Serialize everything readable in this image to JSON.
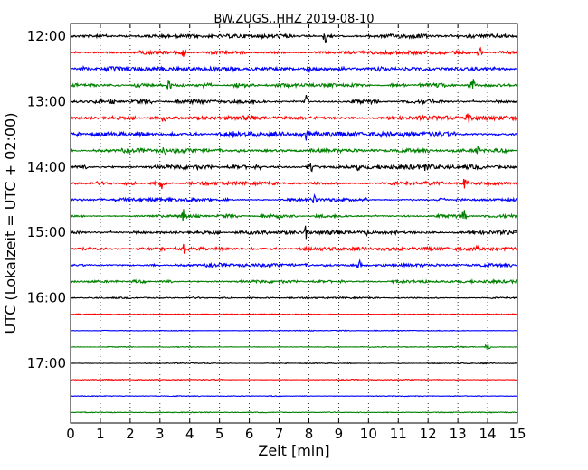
{
  "chart_data": {
    "type": "line",
    "title": "BW.ZUGS..HHZ 2019-08-10",
    "xlabel": "Zeit  [min]",
    "ylabel": "UTC (Lokalzeit = UTC + 02:00)",
    "xlim": [
      0,
      15
    ],
    "xticks": [
      "0",
      "1",
      "2",
      "3",
      "4",
      "5",
      "6",
      "7",
      "8",
      "9",
      "10",
      "11",
      "12",
      "13",
      "14",
      "15"
    ],
    "yticks": [
      "12:00",
      "13:00",
      "14:00",
      "15:00",
      "16:00",
      "17:00"
    ],
    "grid": "vertical dotted",
    "trace_colors": [
      "#000000",
      "#ff0000",
      "#0000ff",
      "#008000"
    ],
    "traces": [
      {
        "start": "12:00",
        "color": "#000000",
        "noise": 0.55,
        "events": [
          {
            "x": 8.55,
            "amp": 1.0
          },
          {
            "x": 8.8,
            "amp": 0.35
          }
        ]
      },
      {
        "start": "12:15",
        "color": "#ff0000",
        "noise": 0.5,
        "events": [
          {
            "x": 3.8,
            "amp": 0.75
          },
          {
            "x": 13.75,
            "amp": 0.95
          }
        ]
      },
      {
        "start": "12:30",
        "color": "#0000ff",
        "noise": 0.6,
        "events": [
          {
            "x": 0.45,
            "amp": 0.3
          },
          {
            "x": 8.0,
            "amp": 0.5
          }
        ]
      },
      {
        "start": "12:45",
        "color": "#008000",
        "noise": 0.55,
        "events": [
          {
            "x": 3.3,
            "amp": 0.85
          },
          {
            "x": 13.5,
            "amp": 0.8
          }
        ]
      },
      {
        "start": "13:00",
        "color": "#000000",
        "noise": 0.55,
        "events": [
          {
            "x": 1.0,
            "amp": 0.4
          },
          {
            "x": 7.9,
            "amp": 0.9
          },
          {
            "x": 12.1,
            "amp": 0.5
          }
        ]
      },
      {
        "start": "13:15",
        "color": "#ff0000",
        "noise": 0.55,
        "events": [
          {
            "x": 3.1,
            "amp": 0.65
          },
          {
            "x": 13.35,
            "amp": 0.9
          }
        ]
      },
      {
        "start": "13:30",
        "color": "#0000ff",
        "noise": 0.65,
        "events": [
          {
            "x": 5.45,
            "amp": 0.35
          },
          {
            "x": 7.95,
            "amp": 0.85
          }
        ]
      },
      {
        "start": "13:45",
        "color": "#008000",
        "noise": 0.55,
        "events": [
          {
            "x": 3.15,
            "amp": 0.8
          },
          {
            "x": 13.65,
            "amp": 0.75
          }
        ]
      },
      {
        "start": "14:00",
        "color": "#000000",
        "noise": 0.6,
        "events": [
          {
            "x": 8.1,
            "amp": 0.9
          },
          {
            "x": 9.65,
            "amp": 0.4
          },
          {
            "x": 11.9,
            "amp": 0.35
          }
        ]
      },
      {
        "start": "14:15",
        "color": "#ff0000",
        "noise": 0.45,
        "events": [
          {
            "x": 3.05,
            "amp": 0.75
          },
          {
            "x": 13.25,
            "amp": 0.85
          }
        ]
      },
      {
        "start": "14:30",
        "color": "#0000ff",
        "noise": 0.45,
        "events": [
          {
            "x": 8.2,
            "amp": 0.8
          },
          {
            "x": 9.85,
            "amp": 0.35
          }
        ]
      },
      {
        "start": "14:45",
        "color": "#008000",
        "noise": 0.45,
        "events": [
          {
            "x": 3.8,
            "amp": 0.9
          },
          {
            "x": 7.0,
            "amp": 0.55
          },
          {
            "x": 13.2,
            "amp": 0.7
          }
        ]
      },
      {
        "start": "15:00",
        "color": "#000000",
        "noise": 0.55,
        "events": [
          {
            "x": 7.9,
            "amp": 1.0
          },
          {
            "x": 9.95,
            "amp": 0.35
          }
        ]
      },
      {
        "start": "15:15",
        "color": "#ff0000",
        "noise": 0.45,
        "events": [
          {
            "x": 3.8,
            "amp": 0.8
          },
          {
            "x": 13.7,
            "amp": 0.85
          }
        ]
      },
      {
        "start": "15:30",
        "color": "#0000ff",
        "noise": 0.45,
        "events": [
          {
            "x": 9.7,
            "amp": 0.6
          }
        ]
      },
      {
        "start": "15:45",
        "color": "#008000",
        "noise": 0.4,
        "events": []
      },
      {
        "start": "16:00",
        "color": "#000000",
        "noise": 0.22,
        "events": []
      },
      {
        "start": "16:15",
        "color": "#ff0000",
        "noise": 0.12,
        "events": []
      },
      {
        "start": "16:30",
        "color": "#0000ff",
        "noise": 0.12,
        "events": []
      },
      {
        "start": "16:45",
        "color": "#008000",
        "noise": 0.12,
        "events": [
          {
            "x": 14.0,
            "amp": 0.55
          }
        ]
      },
      {
        "start": "17:00",
        "color": "#000000",
        "noise": 0.12,
        "events": []
      },
      {
        "start": "17:15",
        "color": "#ff0000",
        "noise": 0.12,
        "events": []
      },
      {
        "start": "17:30",
        "color": "#0000ff",
        "noise": 0.12,
        "events": []
      },
      {
        "start": "17:45",
        "color": "#008000",
        "noise": 0.12,
        "events": []
      }
    ]
  }
}
